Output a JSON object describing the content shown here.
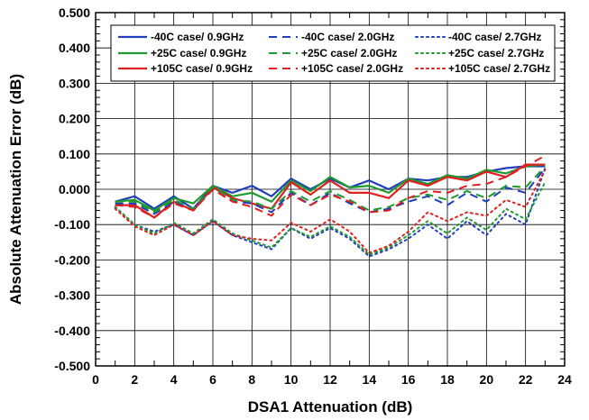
{
  "chart_data": {
    "type": "line",
    "title": "",
    "xlabel": "DSA1 Attenuation (dB)",
    "ylabel": "Absolute Attenuation Error (dB)",
    "xlim": [
      0,
      24
    ],
    "ylim": [
      -0.5,
      0.5
    ],
    "xticks": [
      "0",
      "2",
      "4",
      "6",
      "8",
      "10",
      "12",
      "14",
      "16",
      "18",
      "20",
      "22",
      "24"
    ],
    "yticks": [
      "0.500",
      "0.400",
      "0.300",
      "0.200",
      "0.100",
      "0.000",
      "-0.100",
      "-0.200",
      "-0.300",
      "-0.400",
      "-0.500"
    ],
    "grid": true,
    "legend_position": "top",
    "x": [
      1,
      2,
      3,
      4,
      5,
      6,
      7,
      8,
      9,
      10,
      11,
      12,
      13,
      14,
      15,
      16,
      17,
      18,
      19,
      20,
      21,
      22,
      23
    ],
    "series": [
      {
        "name": "-40C case/ 0.9GHz",
        "color": "#1f3fbf",
        "dash": "solid",
        "values": [
          -0.035,
          -0.02,
          -0.055,
          -0.02,
          -0.055,
          0.01,
          -0.01,
          0.01,
          -0.02,
          0.03,
          0.0,
          0.03,
          0.005,
          0.025,
          0.0,
          0.03,
          0.025,
          0.035,
          0.035,
          0.05,
          0.06,
          0.065,
          0.065
        ]
      },
      {
        "name": "+25C case/ 0.9GHz",
        "color": "#1f9a2f",
        "dash": "solid",
        "values": [
          -0.035,
          -0.03,
          -0.06,
          -0.025,
          -0.04,
          0.01,
          -0.02,
          -0.01,
          -0.035,
          0.025,
          -0.005,
          0.035,
          0.005,
          0.01,
          -0.01,
          0.03,
          0.015,
          0.04,
          0.03,
          0.055,
          0.045,
          0.065,
          0.07
        ]
      },
      {
        "name": "+105C case/ 0.9GHz",
        "color": "#e02020",
        "dash": "solid",
        "values": [
          -0.045,
          -0.045,
          -0.08,
          -0.035,
          -0.06,
          0.005,
          -0.025,
          -0.04,
          -0.055,
          0.02,
          -0.015,
          0.025,
          -0.01,
          -0.01,
          -0.025,
          0.025,
          0.01,
          0.035,
          0.025,
          0.05,
          0.035,
          0.07,
          0.07
        ]
      },
      {
        "name": "-40C case/ 2.0GHz",
        "color": "#1f3fbf",
        "dash": "dashed",
        "values": [
          -0.04,
          -0.04,
          -0.07,
          -0.035,
          -0.06,
          0.0,
          -0.035,
          -0.04,
          -0.065,
          -0.01,
          -0.045,
          -0.01,
          -0.04,
          -0.065,
          -0.055,
          -0.035,
          -0.02,
          -0.045,
          -0.01,
          -0.035,
          0.005,
          -0.01,
          0.06
        ]
      },
      {
        "name": "+25C case/ 2.0GHz",
        "color": "#1f9a2f",
        "dash": "dashed",
        "values": [
          -0.035,
          -0.035,
          -0.065,
          -0.03,
          -0.055,
          0.005,
          -0.03,
          -0.035,
          -0.055,
          -0.005,
          -0.035,
          -0.005,
          -0.03,
          -0.06,
          -0.05,
          -0.025,
          -0.015,
          -0.03,
          -0.005,
          -0.025,
          0.01,
          0.005,
          0.065
        ]
      },
      {
        "name": "+105C case/ 2.0GHz",
        "color": "#e02020",
        "dash": "dashed",
        "values": [
          -0.045,
          -0.05,
          -0.08,
          -0.04,
          -0.06,
          0.0,
          -0.035,
          -0.05,
          -0.075,
          -0.015,
          -0.045,
          -0.015,
          -0.035,
          -0.065,
          -0.06,
          -0.025,
          -0.005,
          -0.01,
          0.01,
          0.015,
          0.035,
          0.065,
          0.095
        ]
      },
      {
        "name": "-40C case/ 2.7GHz",
        "color": "#1f3fbf",
        "dash": "dotted",
        "values": [
          -0.05,
          -0.1,
          -0.12,
          -0.1,
          -0.13,
          -0.09,
          -0.13,
          -0.15,
          -0.17,
          -0.11,
          -0.14,
          -0.11,
          -0.14,
          -0.19,
          -0.17,
          -0.14,
          -0.1,
          -0.14,
          -0.09,
          -0.13,
          -0.07,
          -0.1,
          0.06
        ]
      },
      {
        "name": "+25C case/ 2.7GHz",
        "color": "#1f9a2f",
        "dash": "dotted",
        "values": [
          -0.05,
          -0.1,
          -0.125,
          -0.095,
          -0.125,
          -0.085,
          -0.125,
          -0.145,
          -0.165,
          -0.11,
          -0.135,
          -0.105,
          -0.135,
          -0.185,
          -0.165,
          -0.13,
          -0.09,
          -0.125,
          -0.08,
          -0.115,
          -0.055,
          -0.085,
          0.02
        ]
      },
      {
        "name": "+105C case/ 2.7GHz",
        "color": "#e02020",
        "dash": "dotted",
        "values": [
          -0.055,
          -0.105,
          -0.13,
          -0.1,
          -0.13,
          -0.09,
          -0.13,
          -0.14,
          -0.145,
          -0.095,
          -0.12,
          -0.085,
          -0.12,
          -0.18,
          -0.16,
          -0.12,
          -0.065,
          -0.09,
          -0.065,
          -0.075,
          -0.03,
          -0.05,
          0.055
        ]
      }
    ]
  }
}
